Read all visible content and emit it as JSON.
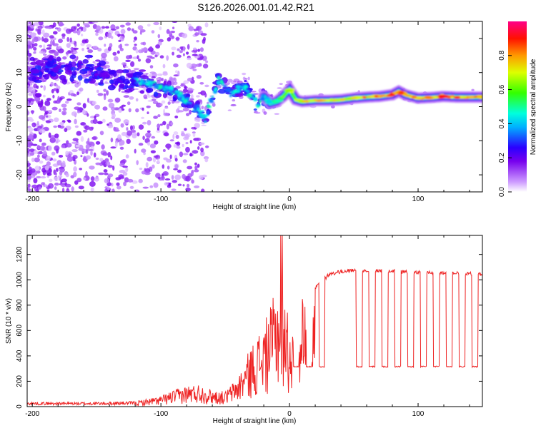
{
  "title": "S126.2026.001.01.42.R21",
  "chart_data": [
    {
      "type": "heatmap",
      "id": "spectrogram",
      "xlabel": "Height of straight line (km)",
      "ylabel": "Frequency (Hz)",
      "xlim": [
        -204,
        150
      ],
      "ylim": [
        -25,
        25
      ],
      "xticks": [
        -200,
        -100,
        0,
        100
      ],
      "yticks": [
        -20,
        -10,
        0,
        10,
        20
      ],
      "colorbar": {
        "label": "Normalized spectral amplitude",
        "range": [
          0,
          1
        ],
        "ticks": [
          "0.0",
          "0.2",
          "0.4",
          "0.6",
          "0.8"
        ],
        "tick_values": [
          0.0,
          0.2,
          0.4,
          0.6,
          0.8
        ]
      },
      "ridge": {
        "description_points_x": [
          -165,
          -150,
          -130,
          -110,
          -95,
          -85,
          -75,
          -65,
          -55,
          -45,
          -35,
          -25,
          -20,
          -15,
          -10,
          -5,
          0,
          5,
          10,
          20,
          30,
          40,
          50,
          60,
          70,
          80,
          85,
          90,
          100,
          110,
          120,
          130,
          140,
          150
        ],
        "description_points_y": [
          11,
          10,
          8,
          7,
          5,
          3,
          0,
          -3,
          8,
          4,
          6,
          1,
          3,
          1,
          1.5,
          3,
          5,
          2,
          1.5,
          1.8,
          1.8,
          2,
          2.5,
          2.8,
          3,
          3.5,
          4.5,
          3.5,
          2.5,
          2.7,
          3,
          2.8,
          2.8,
          2.8
        ],
        "amplitude": [
          0.25,
          0.25,
          0.25,
          0.3,
          0.35,
          0.3,
          0.3,
          0.3,
          0.25,
          0.3,
          0.3,
          0.4,
          0.45,
          0.5,
          0.55,
          0.6,
          0.65,
          0.75,
          0.8,
          0.85,
          0.85,
          0.8,
          0.8,
          0.85,
          0.85,
          0.9,
          0.95,
          0.85,
          0.85,
          0.85,
          0.9,
          0.85,
          0.85,
          0.85
        ]
      }
    },
    {
      "type": "line",
      "id": "snr",
      "xlabel": "Height of straight line (km)",
      "ylabel": "SNR (10 * v/v)",
      "xlim": [
        -204,
        150
      ],
      "ylim": [
        0,
        1350
      ],
      "xticks": [
        -200,
        -100,
        0,
        100
      ],
      "yticks": [
        0,
        200,
        400,
        600,
        800,
        1000,
        1200
      ],
      "series": [
        {
          "name": "SNR",
          "color": "#ee2222",
          "envelope_x": [
            -204,
            -150,
            -120,
            -100,
            -90,
            -80,
            -70,
            -60,
            -50,
            -40,
            -30,
            -20,
            -15,
            -10,
            -5,
            0,
            5,
            10,
            20,
            30,
            40,
            50,
            150
          ],
          "envelope_y": [
            30,
            30,
            35,
            70,
            110,
            140,
            150,
            110,
            100,
            200,
            400,
            550,
            650,
            800,
            900,
            500,
            600,
            750,
            950,
            1050,
            1080,
            1090,
            1060
          ],
          "dropout_level": 310,
          "dropout_x": [
            3,
            13,
            23,
            52,
            62,
            72,
            82,
            92,
            102,
            112,
            122,
            132,
            142
          ]
        }
      ]
    }
  ]
}
